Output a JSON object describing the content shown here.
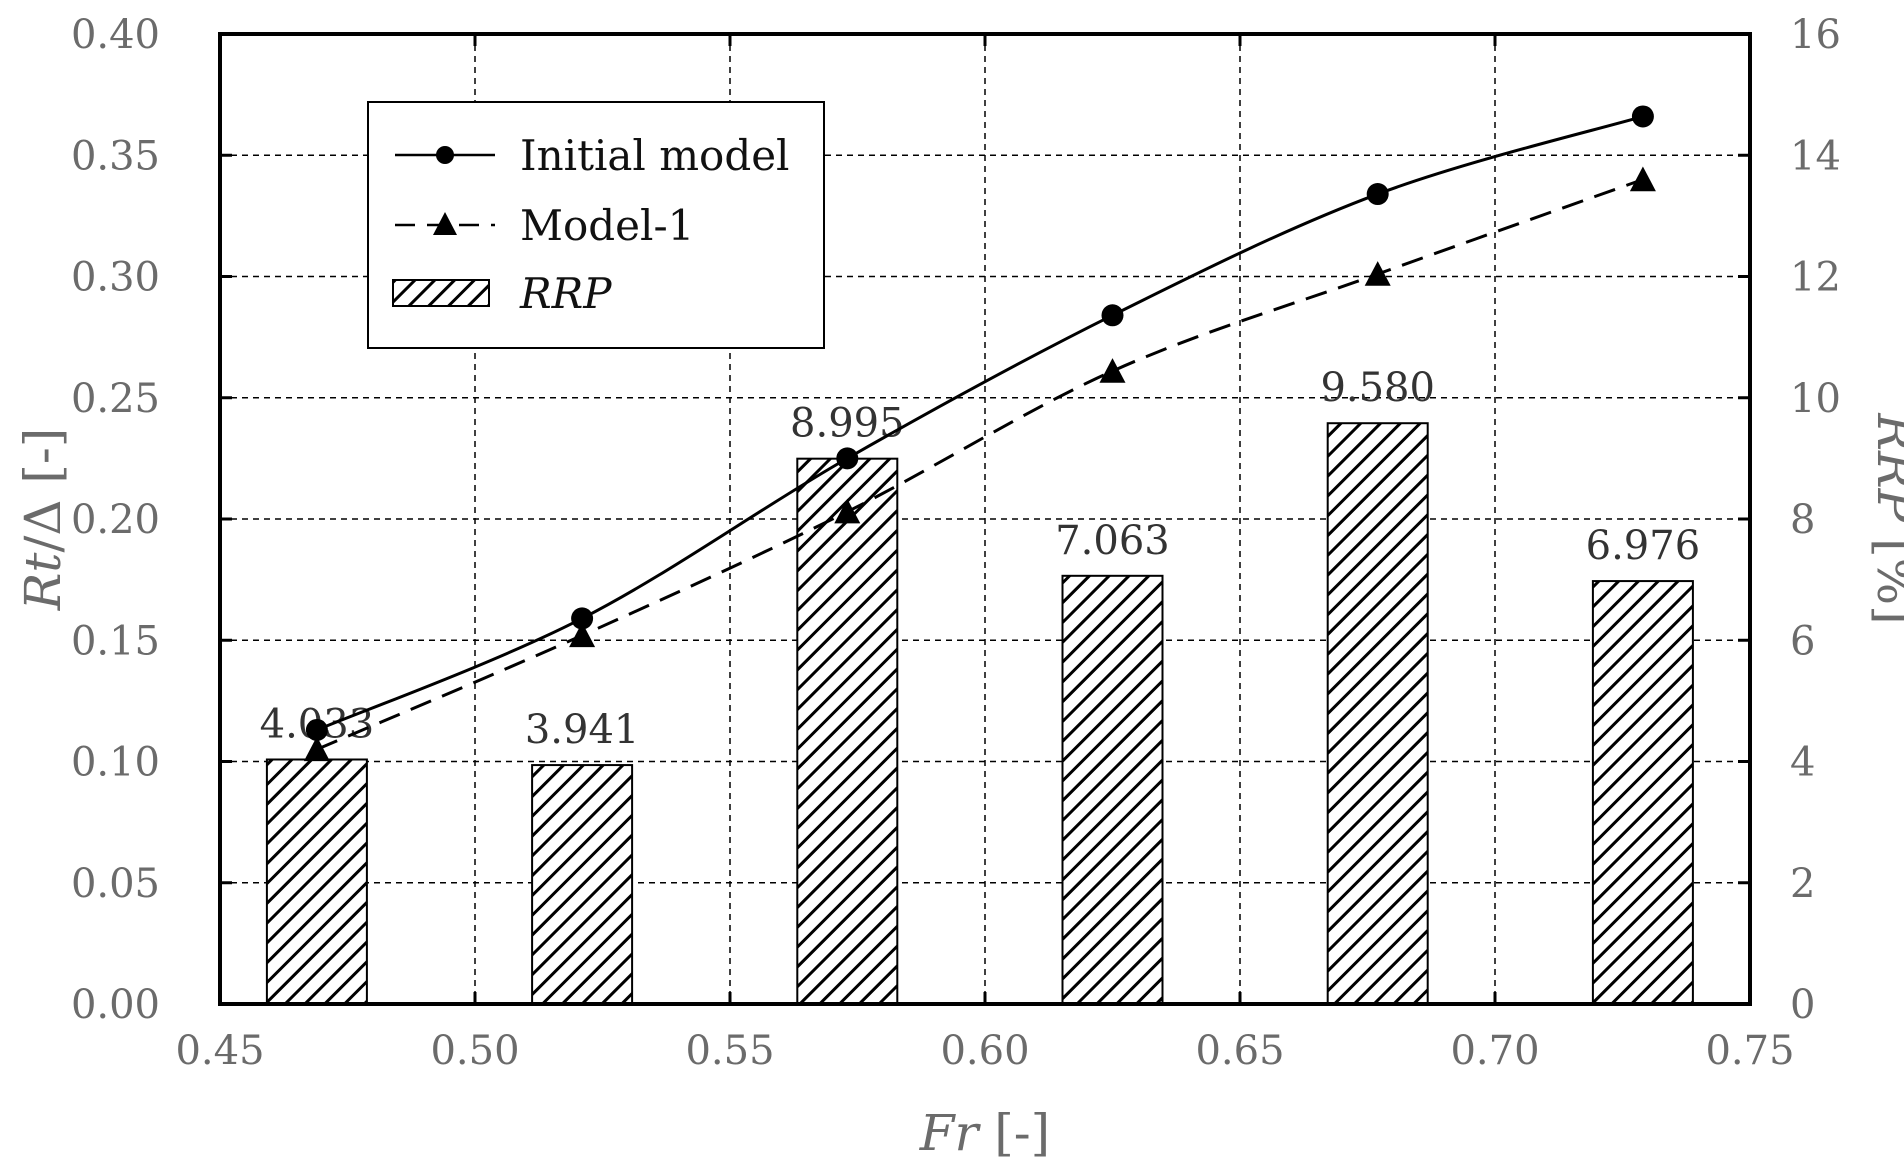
{
  "chart_data": {
    "type": "bar+line",
    "x_axis": {
      "label_var": "Fr",
      "label_unit": " [-]",
      "range": [
        0.45,
        0.75
      ],
      "ticks": [
        "0.45",
        "0.50",
        "0.55",
        "0.60",
        "0.65",
        "0.70",
        "0.75"
      ],
      "tick_values": [
        0.45,
        0.5,
        0.55,
        0.6,
        0.65,
        0.7,
        0.75
      ]
    },
    "y_left": {
      "label_var": "Rt",
      "label_sep": "/Δ",
      "label_unit": " [-]",
      "range": [
        0,
        0.4
      ],
      "ticks": [
        "0.00",
        "0.05",
        "0.10",
        "0.15",
        "0.20",
        "0.25",
        "0.30",
        "0.35",
        "0.40"
      ],
      "tick_values": [
        0,
        0.05,
        0.1,
        0.15,
        0.2,
        0.25,
        0.3,
        0.35,
        0.4
      ]
    },
    "y_right": {
      "label_var": "RRP",
      "label_unit": " [%]",
      "range": [
        0,
        16
      ],
      "ticks": [
        "0",
        "2",
        "4",
        "6",
        "8",
        "10",
        "12",
        "14",
        "16"
      ],
      "tick_values": [
        0,
        2,
        4,
        6,
        8,
        10,
        12,
        14,
        16
      ]
    },
    "grid": true,
    "legend_position": "top-left",
    "bars": {
      "name": "RRP",
      "axis": "right",
      "x": [
        0.469,
        0.521,
        0.573,
        0.625,
        0.677,
        0.729
      ],
      "values": [
        4.033,
        3.941,
        8.995,
        7.063,
        9.58,
        6.976
      ],
      "labels": [
        "4.033",
        "3.941",
        "8.995",
        "7.063",
        "9.580",
        "6.976"
      ],
      "pattern": "diagonal-hatch"
    },
    "series": [
      {
        "name": "Initial model",
        "axis": "left",
        "marker": "circle",
        "line": "solid",
        "x": [
          0.469,
          0.521,
          0.573,
          0.625,
          0.677,
          0.729
        ],
        "values": [
          0.113,
          0.159,
          0.225,
          0.284,
          0.334,
          0.366
        ]
      },
      {
        "name": "Model-1",
        "axis": "left",
        "marker": "triangle",
        "line": "dashed",
        "x": [
          0.469,
          0.521,
          0.573,
          0.625,
          0.677,
          0.729
        ],
        "values": [
          0.105,
          0.152,
          0.203,
          0.261,
          0.301,
          0.34
        ]
      }
    ],
    "colors": {
      "marks": "#000000",
      "axis_text": "#6b6b6b",
      "label_text": "#333333"
    }
  }
}
